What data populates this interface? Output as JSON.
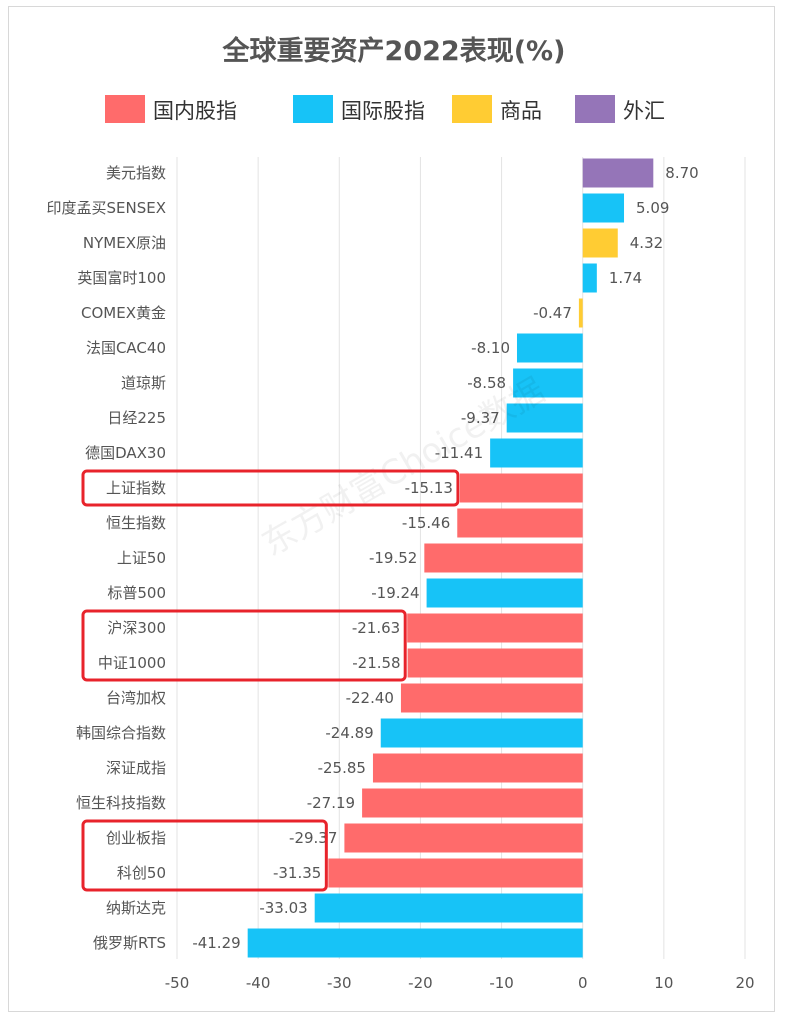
{
  "chart_data": {
    "type": "bar",
    "orientation": "horizontal",
    "title": "全球重要资产2022表现(%)",
    "xlim": [
      -50,
      20
    ],
    "x_ticks": [
      -50,
      -40,
      -30,
      -20,
      -10,
      0,
      10,
      20
    ],
    "grid": true,
    "legend_position": "top",
    "legend": [
      {
        "name": "国内股指",
        "color": "#ff6b6b"
      },
      {
        "name": "国际股指",
        "color": "#17c3f7"
      },
      {
        "name": "商品",
        "color": "#ffcc33"
      },
      {
        "name": "外汇",
        "color": "#9575b8"
      }
    ],
    "categories": [
      "美元指数",
      "印度孟买SENSEX",
      "NYMEX原油",
      "英国富时100",
      "COMEX黄金",
      "法国CAC40",
      "道琼斯",
      "日经225",
      "德国DAX30",
      "上证指数",
      "恒生指数",
      "上证50",
      "标普500",
      "沪深300",
      "中证1000",
      "台湾加权",
      "韩国综合指数",
      "深证成指",
      "恒生科技指数",
      "创业板指",
      "科创50",
      "纳斯达克",
      "俄罗斯RTS"
    ],
    "values": [
      8.7,
      5.09,
      4.32,
      1.74,
      -0.47,
      -8.1,
      -8.58,
      -9.37,
      -11.41,
      -15.13,
      -15.46,
      -19.52,
      -19.24,
      -21.63,
      -21.58,
      -22.4,
      -24.89,
      -25.85,
      -27.19,
      -29.37,
      -31.35,
      -33.03,
      -41.29
    ],
    "value_labels": [
      "8.70",
      "5.09",
      "4.32",
      "1.74",
      "-0.47",
      "-8.10",
      "-8.58",
      "-9.37",
      "-11.41",
      "-15.13",
      "-15.46",
      "-19.52",
      "-19.24",
      "-21.63",
      "-21.58",
      "-22.40",
      "-24.89",
      "-25.85",
      "-27.19",
      "-29.37",
      "-31.35",
      "-33.03",
      "-41.29"
    ],
    "groups": [
      "外汇",
      "国际股指",
      "商品",
      "国际股指",
      "商品",
      "国际股指",
      "国际股指",
      "国际股指",
      "国际股指",
      "国内股指",
      "国内股指",
      "国内股指",
      "国际股指",
      "国内股指",
      "国内股指",
      "国内股指",
      "国际股指",
      "国内股指",
      "国内股指",
      "国内股指",
      "国内股指",
      "国际股指",
      "国际股指"
    ],
    "highlighted": [
      [
        "上证指数"
      ],
      [
        "沪深300",
        "中证1000"
      ],
      [
        "创业板指",
        "科创50"
      ]
    ],
    "highlight_color": "#e8232b"
  },
  "watermark": "东方财富Choice数据"
}
